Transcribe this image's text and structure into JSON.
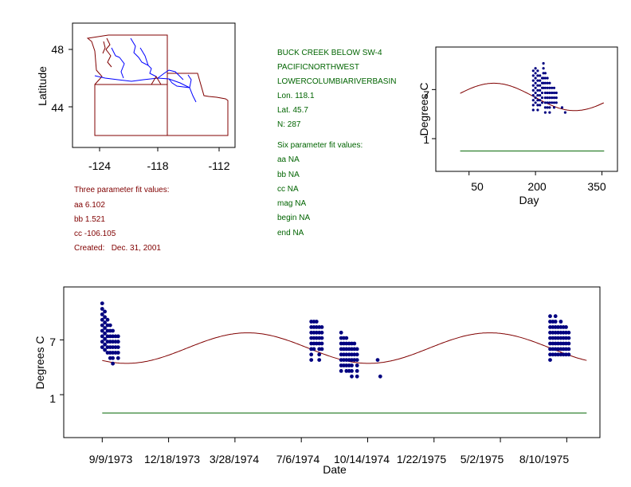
{
  "colors": {
    "blue": "#000080",
    "red": "#800000",
    "green": "#006400",
    "river": "#0000ff",
    "state": "#800000",
    "axis": "#000000"
  },
  "map": {
    "xlabel": "",
    "ylabel": "Latitude",
    "xticks": [
      "-124",
      "-118",
      "-112"
    ],
    "yticks": [
      "48",
      "44"
    ],
    "station_marker": "triangle"
  },
  "info": {
    "station": "BUCK CREEK BELOW SW-4",
    "region": "PACIFICNORTHWEST",
    "basin": "LOWERCOLUMBIARIVERBASIN",
    "lon": "Lon. 118.1",
    "lat": "Lat. 45.7",
    "n": "N: 287"
  },
  "three_param": {
    "header": "Three parameter fit values:",
    "aa": "aa 6.102",
    "bb": "bb 1.521",
    "cc": "cc -106.105",
    "created": "Created:   Dec. 31, 2001"
  },
  "six_param": {
    "header": "Six parameter fit values:",
    "aa": "aa NA",
    "bb": "bb NA",
    "cc": "cc NA",
    "mag": "mag NA",
    "begin": "begin NA",
    "end": "end NA"
  },
  "chart_data": [
    {
      "type": "scatter",
      "title": "",
      "xlabel": "Day",
      "ylabel": "Degrees C",
      "xlim": [
        -25,
        385
      ],
      "ylim": [
        -3,
        12.2
      ],
      "xticks": [
        "50",
        "200",
        "350"
      ],
      "yticks": [
        "7",
        "1"
      ],
      "fit_curve": {
        "aa": 6.102,
        "bb": 1.521,
        "cc": -106.105,
        "x_range": [
          30,
          355
        ]
      },
      "baseline": {
        "value": -0.5,
        "x_range": [
          30,
          355
        ]
      },
      "points": [
        {
          "x": 195,
          "y": 9.3
        },
        {
          "x": 195,
          "y": 8.7
        },
        {
          "x": 195,
          "y": 8.1
        },
        {
          "x": 195,
          "y": 7.5
        },
        {
          "x": 195,
          "y": 6.9
        },
        {
          "x": 195,
          "y": 6.3
        },
        {
          "x": 195,
          "y": 5.7
        },
        {
          "x": 195,
          "y": 5.1
        },
        {
          "x": 195,
          "y": 4.5
        },
        {
          "x": 200,
          "y": 9.6
        },
        {
          "x": 200,
          "y": 9.0
        },
        {
          "x": 200,
          "y": 8.4
        },
        {
          "x": 200,
          "y": 7.8
        },
        {
          "x": 200,
          "y": 7.2
        },
        {
          "x": 200,
          "y": 6.6
        },
        {
          "x": 200,
          "y": 6.0
        },
        {
          "x": 200,
          "y": 5.4
        },
        {
          "x": 205,
          "y": 9.3
        },
        {
          "x": 205,
          "y": 8.7
        },
        {
          "x": 205,
          "y": 8.1
        },
        {
          "x": 205,
          "y": 7.5
        },
        {
          "x": 205,
          "y": 6.9
        },
        {
          "x": 205,
          "y": 6.3
        },
        {
          "x": 205,
          "y": 5.7
        },
        {
          "x": 205,
          "y": 5.1
        },
        {
          "x": 205,
          "y": 4.5
        },
        {
          "x": 210,
          "y": 8.7
        },
        {
          "x": 210,
          "y": 8.1
        },
        {
          "x": 210,
          "y": 7.5
        },
        {
          "x": 210,
          "y": 6.9
        },
        {
          "x": 210,
          "y": 6.3
        },
        {
          "x": 210,
          "y": 5.7
        },
        {
          "x": 210,
          "y": 5.1
        },
        {
          "x": 215,
          "y": 8.4
        },
        {
          "x": 215,
          "y": 7.8
        },
        {
          "x": 215,
          "y": 7.2
        },
        {
          "x": 215,
          "y": 6.6
        },
        {
          "x": 215,
          "y": 6.0
        },
        {
          "x": 215,
          "y": 5.4
        },
        {
          "x": 218,
          "y": 10.2
        },
        {
          "x": 218,
          "y": 9.6
        },
        {
          "x": 218,
          "y": 9.0
        },
        {
          "x": 218,
          "y": 8.4
        },
        {
          "x": 218,
          "y": 7.8
        },
        {
          "x": 218,
          "y": 7.2
        },
        {
          "x": 222,
          "y": 9.0
        },
        {
          "x": 222,
          "y": 8.4
        },
        {
          "x": 222,
          "y": 7.8
        },
        {
          "x": 222,
          "y": 7.2
        },
        {
          "x": 222,
          "y": 6.6
        },
        {
          "x": 222,
          "y": 6.0
        },
        {
          "x": 222,
          "y": 5.4
        },
        {
          "x": 222,
          "y": 4.8
        },
        {
          "x": 222,
          "y": 4.2
        },
        {
          "x": 227,
          "y": 8.4
        },
        {
          "x": 227,
          "y": 7.8
        },
        {
          "x": 227,
          "y": 7.2
        },
        {
          "x": 227,
          "y": 6.6
        },
        {
          "x": 227,
          "y": 6.0
        },
        {
          "x": 227,
          "y": 5.4
        },
        {
          "x": 227,
          "y": 4.8
        },
        {
          "x": 232,
          "y": 7.8
        },
        {
          "x": 232,
          "y": 7.2
        },
        {
          "x": 232,
          "y": 6.6
        },
        {
          "x": 232,
          "y": 6.0
        },
        {
          "x": 232,
          "y": 5.4
        },
        {
          "x": 232,
          "y": 4.8
        },
        {
          "x": 232,
          "y": 4.2
        },
        {
          "x": 237,
          "y": 7.2
        },
        {
          "x": 237,
          "y": 6.6
        },
        {
          "x": 237,
          "y": 6.0
        },
        {
          "x": 237,
          "y": 5.4
        },
        {
          "x": 242,
          "y": 7.2
        },
        {
          "x": 242,
          "y": 6.6
        },
        {
          "x": 242,
          "y": 6.0
        },
        {
          "x": 242,
          "y": 5.4
        },
        {
          "x": 242,
          "y": 4.8
        },
        {
          "x": 247,
          "y": 6.6
        },
        {
          "x": 247,
          "y": 6.0
        },
        {
          "x": 247,
          "y": 5.4
        },
        {
          "x": 260,
          "y": 4.8
        },
        {
          "x": 267,
          "y": 4.2
        }
      ]
    },
    {
      "type": "scatter",
      "title": "",
      "xlabel": "Date",
      "ylabel": "Degrees C",
      "xlim": [
        -58,
        750
      ],
      "ylim": [
        -3.7,
        12.8
      ],
      "xtick_days": [
        0,
        100,
        200,
        300,
        400,
        500,
        600,
        700
      ],
      "xticks": [
        "9/9/1973",
        "12/18/1973",
        "3/28/1974",
        "7/6/1974",
        "10/14/1974",
        "1/22/1975",
        "5/2/1975",
        "8/10/1975"
      ],
      "yticks": [
        "7",
        "1"
      ],
      "fit_curve": {
        "start_doy": 252,
        "x_range": [
          0,
          730
        ]
      },
      "baseline": {
        "value": -1.0,
        "x_range": [
          0,
          730
        ]
      },
      "clusters": [
        {
          "x_start": 0,
          "columns": [
            [
              11,
              10.4,
              9.8,
              9.2,
              8.6,
              8.0,
              7.4,
              6.8,
              6.2
            ],
            [
              10.1,
              9.5,
              8.9,
              8.3,
              7.7,
              7.1,
              6.5,
              5.9
            ],
            [
              9.2,
              8.6,
              8.0,
              7.4,
              6.8,
              6.2,
              5.6
            ],
            [
              8.6,
              8.0,
              7.4,
              6.8,
              6.2,
              5.6,
              5.0
            ],
            [
              8.0,
              7.4,
              6.8,
              6.2,
              5.6,
              5.0,
              4.4
            ],
            [
              7.4,
              6.8,
              6.2,
              5.6
            ],
            [
              7.4,
              6.8,
              6.2,
              5.6,
              5.0
            ]
          ]
        },
        {
          "x_start": 315,
          "columns": [
            [
              9.0,
              8.4,
              7.8,
              7.2,
              6.6,
              6.0,
              5.4,
              4.8
            ],
            [
              9.0,
              8.4,
              7.8,
              7.2,
              6.6,
              6.0
            ],
            [
              9.0,
              8.4,
              7.8,
              7.2,
              6.6
            ],
            [
              8.4,
              7.8,
              7.2,
              6.6,
              6.0,
              5.4,
              4.8
            ],
            [
              8.4,
              7.8,
              7.2,
              6.6,
              6.0
            ]
          ]
        },
        {
          "x_start": 360,
          "columns": [
            [
              7.8,
              7.2,
              6.6,
              6.0,
              5.4,
              4.8,
              4.2,
              3.6
            ],
            [
              7.2,
              6.6,
              6.0,
              5.4,
              4.8,
              4.2
            ],
            [
              7.2,
              6.6,
              6.0,
              5.4,
              4.8,
              4.2,
              3.6
            ],
            [
              6.6,
              6.0,
              5.4,
              4.8,
              4.2,
              3.6
            ],
            [
              6.6,
              6.0,
              5.4,
              4.8,
              4.2,
              3.6,
              3.0
            ],
            [
              6.6,
              6.0,
              5.4,
              4.8
            ],
            [
              6.0,
              5.4,
              4.8,
              4.2,
              3.6,
              3.0
            ]
          ]
        },
        {
          "x_start": 415,
          "columns": [
            [
              4.8
            ],
            [
              3.0
            ]
          ]
        },
        {
          "x_start": 675,
          "columns": [
            [
              9.6,
              9.0,
              8.4,
              7.8,
              7.2,
              6.6,
              6.0,
              5.4,
              4.8
            ],
            [
              9.0,
              8.4,
              7.8,
              7.2,
              6.6,
              6.0,
              5.4
            ],
            [
              9.6,
              9.0,
              8.4,
              7.8,
              7.2,
              6.6,
              6.0,
              5.4
            ],
            [
              8.4,
              7.8,
              7.2,
              6.6,
              6.0,
              5.4
            ],
            [
              9.0,
              8.4,
              7.8,
              7.2,
              6.6,
              6.0,
              5.4
            ],
            [
              8.4,
              7.8,
              7.2,
              6.6,
              6.0,
              5.4
            ],
            [
              8.4,
              7.8,
              7.2,
              6.6,
              6.0,
              5.4
            ],
            [
              7.8,
              7.2,
              6.6,
              6.0,
              5.4
            ]
          ]
        }
      ]
    }
  ]
}
